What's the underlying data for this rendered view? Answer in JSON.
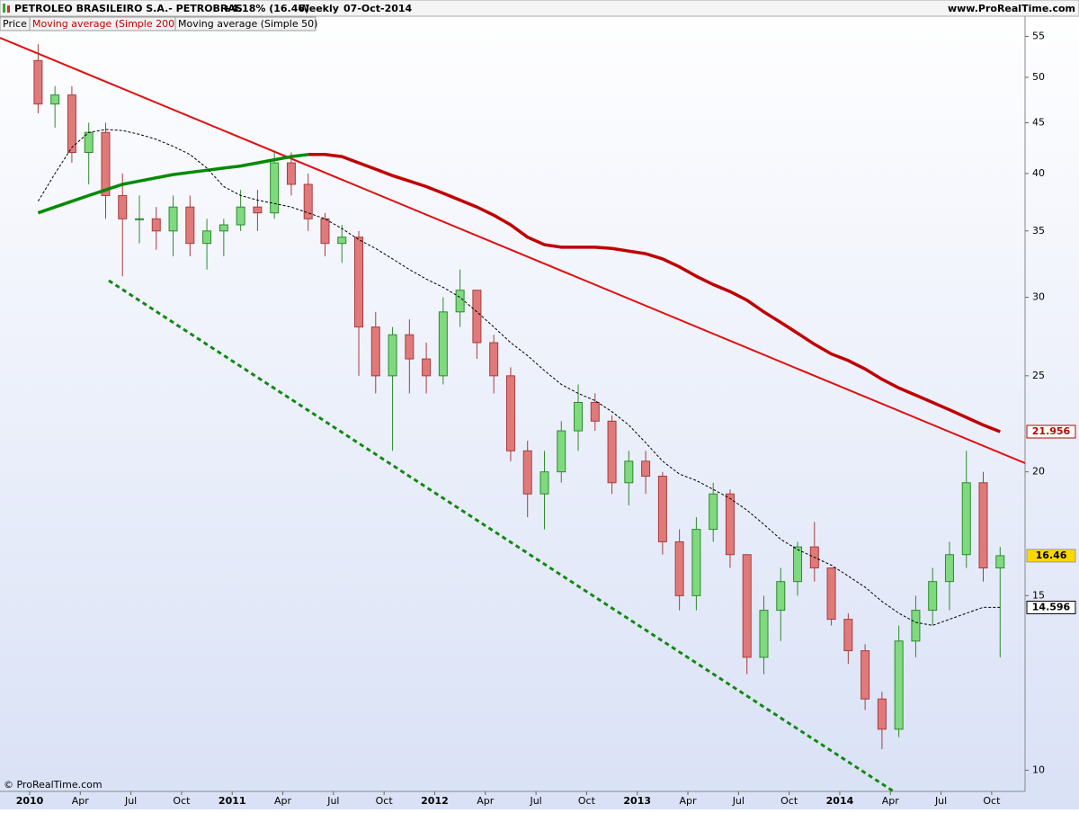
{
  "chart_data": {
    "type": "candlestick",
    "title": "PETROLEO BRASILEIRO S.A.- PETROBRAS",
    "change": "+4.18% (16.46)",
    "period": "Weekly",
    "date": "07-Oct-2014",
    "source": "www.ProRealTime.com",
    "copyright": "© ProRealTime.com",
    "price_name": "Price",
    "up_color": "#7fd97f",
    "down_color": "#e07a7a",
    "categories": [
      "2010",
      null,
      null,
      "Apr",
      null,
      null,
      "Jul",
      null,
      null,
      "Oct",
      null,
      null,
      "2011",
      null,
      null,
      "Apr",
      null,
      null,
      "Jul",
      null,
      null,
      "Oct",
      null,
      null,
      "2012",
      null,
      null,
      "Apr",
      null,
      null,
      "Jul",
      null,
      null,
      "Oct",
      null,
      null,
      "2013",
      null,
      null,
      "Apr",
      null,
      null,
      "Jul",
      null,
      null,
      "Oct",
      null,
      null,
      "2014",
      null,
      null,
      "Apr",
      null,
      null,
      "Jul",
      null,
      null,
      "Oct"
    ],
    "open": [
      52,
      47,
      48,
      42,
      44,
      38,
      36,
      36,
      35,
      37,
      34,
      35,
      35.5,
      37,
      36.5,
      41,
      39,
      36,
      34,
      34.5,
      28,
      25,
      27.5,
      26,
      25,
      29,
      30.5,
      27,
      25,
      21,
      19,
      20,
      22,
      23.5,
      22.5,
      19.5,
      20.5,
      19.8,
      17,
      15,
      17.5,
      19,
      16.5,
      13,
      14.5,
      15.5,
      16.8,
      16,
      14.2,
      13.2,
      11.8,
      11,
      13.5,
      14.5,
      15.5,
      16.5,
      19.5,
      16
    ],
    "high": [
      54,
      49,
      49,
      45,
      45,
      40,
      38,
      37,
      38,
      38,
      36,
      36,
      38.5,
      38.5,
      42,
      42,
      40,
      36.5,
      35.5,
      35,
      29,
      28,
      28.5,
      27,
      30,
      32,
      30.5,
      27.5,
      25.5,
      21.5,
      21,
      22.5,
      24.5,
      24,
      22.8,
      21,
      21,
      20,
      17.5,
      18,
      19.5,
      19.2,
      16.5,
      15,
      16,
      17,
      17.8,
      16,
      14.4,
      13.4,
      12,
      14,
      15,
      16,
      17,
      21,
      20,
      16.8
    ],
    "low": [
      46,
      44.5,
      41,
      39,
      36,
      31.5,
      34,
      33.5,
      33,
      33,
      32,
      33,
      35,
      35,
      36,
      38,
      35,
      33,
      32.5,
      25,
      24,
      21,
      24,
      24,
      24.5,
      28,
      26,
      24,
      20.5,
      18,
      17.5,
      19.5,
      21,
      22,
      19,
      18.5,
      19,
      16.5,
      14.5,
      14.5,
      17,
      16,
      12.5,
      12.5,
      13.5,
      15,
      15.5,
      14,
      12.8,
      11.5,
      10.5,
      10.8,
      13,
      14,
      14.5,
      16,
      15.5,
      13
    ],
    "close": [
      47,
      48,
      42,
      44,
      38,
      36,
      36,
      35,
      37,
      34,
      35,
      35.5,
      37,
      36.5,
      41,
      39,
      36,
      34,
      34.5,
      28,
      25,
      27.5,
      26,
      25,
      29,
      30.5,
      27,
      25,
      21,
      19,
      20,
      22,
      23.5,
      22.5,
      19.5,
      20.5,
      19.8,
      17,
      15,
      17.5,
      19,
      16.5,
      13,
      14.5,
      15.5,
      16.8,
      16,
      14.2,
      13.2,
      11.8,
      11,
      13.5,
      14.5,
      15.5,
      16.5,
      19.5,
      16,
      16.46
    ],
    "series": [
      {
        "name": "Moving average (Simple 200)",
        "color": "#c00000",
        "rising_color": "#008a00",
        "values": [
          36.5,
          37,
          37.5,
          38,
          38.5,
          39,
          39.3,
          39.6,
          39.9,
          40.1,
          40.3,
          40.5,
          40.7,
          41,
          41.3,
          41.6,
          41.8,
          41.8,
          41.6,
          41,
          40.4,
          39.8,
          39.3,
          38.8,
          38.2,
          37.6,
          37,
          36.3,
          35.5,
          34.5,
          33.9,
          33.7,
          33.7,
          33.7,
          33.6,
          33.4,
          33.2,
          32.8,
          32.2,
          31.5,
          30.9,
          30.4,
          29.8,
          29,
          28.3,
          27.6,
          26.9,
          26.3,
          25.9,
          25.4,
          24.8,
          24.3,
          23.9,
          23.5,
          23.1,
          22.7,
          22.3,
          21.956
        ]
      },
      {
        "name": "Moving average (Simple 50)",
        "color": "#000000",
        "dashed": true,
        "values": [
          37.5,
          40,
          42.5,
          44,
          44.3,
          44.2,
          43.8,
          43.3,
          42.6,
          41.8,
          40.5,
          38.8,
          38,
          37.6,
          37.3,
          37,
          36.5,
          36,
          35.2,
          34.3,
          33.6,
          32.8,
          32,
          31.3,
          30.7,
          30,
          29,
          28,
          27,
          26.2,
          25.3,
          24.5,
          24,
          23.6,
          23,
          22.3,
          21.4,
          20.5,
          19.9,
          19.6,
          19.2,
          18.8,
          18.3,
          17.7,
          17.1,
          16.7,
          16.4,
          16.1,
          15.7,
          15.3,
          14.8,
          14.4,
          14.1,
          14,
          14.2,
          14.4,
          14.6,
          14.596
        ]
      }
    ],
    "log_scale": true,
    "ylim": [
      9.52,
      57.4
    ],
    "yticks": [
      10,
      15,
      20,
      25,
      30,
      35,
      40,
      45,
      50,
      55
    ]
  }
}
